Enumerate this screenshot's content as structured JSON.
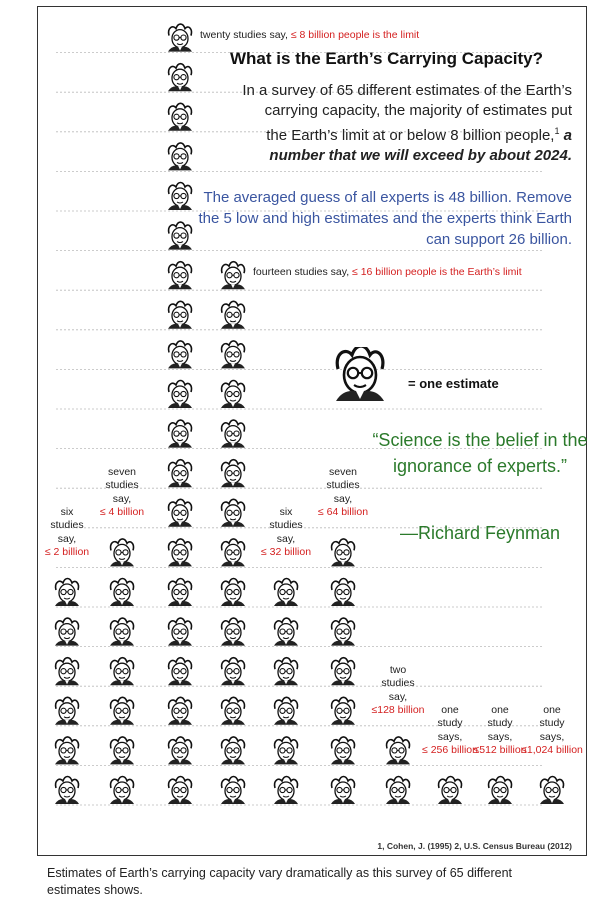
{
  "title": "What is the Earth’s Carrying Capacity?",
  "intro": {
    "line_main": "In a survey of 65 different estimates of the Earth’s carrying capacity, the majority of estimates put the Earth’s limit at or below 8 billion people,",
    "footnote_mark": "1",
    "line_highlight": "a number that we will exceed by about 2024."
  },
  "averaged_note": "The averaged guess of all experts is 48 billion. Remove the 5 low and high estimates and the experts think Earth can support 26 billion.",
  "quote": {
    "text": "“Science is the belief in the ignorance of experts.”",
    "author": "—Richard Feynman"
  },
  "legend": {
    "label": "= one estimate",
    "icon": "scientist-face-icon"
  },
  "sources": "1, Cohen, J. (1995)   2, U.S. Census Bureau (2012)",
  "caption": "Estimates of Earth’s carrying capacity vary dramatically as this survey of 65 different estimates shows.",
  "colors": {
    "red": "#d42020",
    "blue": "#3a55a0",
    "green": "#2b7a2b",
    "dash": "#bbbbbb"
  },
  "chart_data": {
    "type": "bar",
    "style": "pictograph",
    "categories": [
      "≤2 billion",
      "≤4 billion",
      "≤8 billion",
      "≤16 billion",
      "≤32 billion",
      "≤64 billion",
      "≤128 billion",
      "≤256 billion",
      "≤512 billion",
      "≤1,024 billion"
    ],
    "values": [
      6,
      7,
      20,
      14,
      6,
      7,
      2,
      1,
      1,
      1
    ],
    "unit": "one estimate per icon",
    "labels": [
      {
        "pre": "six studies say,",
        "limit": "≤ 2 billion"
      },
      {
        "pre": "seven studies say,",
        "limit": "≤ 4 billion"
      },
      {
        "pre": "twenty studies say,",
        "limit": "≤ 8 billion people is the limit"
      },
      {
        "pre": "fourteen studies say,",
        "limit": "≤ 16 billion people is the Earth’s limit"
      },
      {
        "pre": "six studies say,",
        "limit": "≤ 32 billion"
      },
      {
        "pre": "seven studies say,",
        "limit": "≤ 64 billion"
      },
      {
        "pre": "two studies say,",
        "limit": "≤128 billion"
      },
      {
        "pre": "one study says,",
        "limit": "≤ 256 billion"
      },
      {
        "pre": "one study says,",
        "limit": "≤512 billion"
      },
      {
        "pre": "one study says,",
        "limit": "≤1,024 billion"
      }
    ],
    "grid": "dashed horizontal"
  }
}
